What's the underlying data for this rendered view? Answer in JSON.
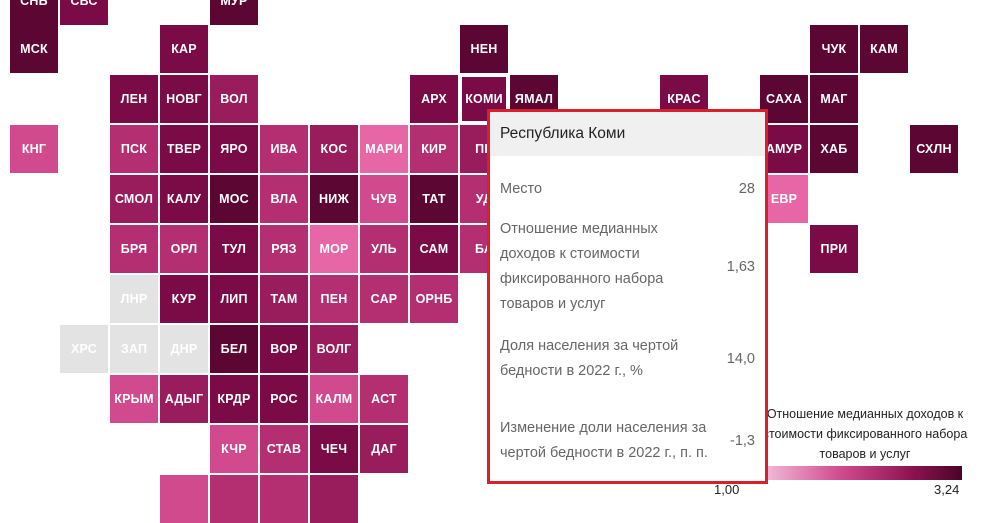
{
  "map": {
    "tiles": [
      {
        "code": "СНБ",
        "shade": "c1"
      },
      {
        "code": "СВС",
        "shade": "c2"
      },
      {
        "code": "МУР",
        "shade": "c1"
      },
      {
        "code": "МСК",
        "shade": "c1"
      },
      {
        "code": "КАР",
        "shade": "c2"
      },
      {
        "code": "НЕН",
        "shade": "c1"
      },
      {
        "code": "ЧУК",
        "shade": "c1"
      },
      {
        "code": "КАМ",
        "shade": "c1"
      },
      {
        "code": "ЛЕН",
        "shade": "c2"
      },
      {
        "code": "НОВГ",
        "shade": "c2"
      },
      {
        "code": "ВОЛ",
        "shade": "c3"
      },
      {
        "code": "АРХ",
        "shade": "c2"
      },
      {
        "code": "КОМИ",
        "shade": "c2",
        "selected": true
      },
      {
        "code": "ЯМАЛ",
        "shade": "c1"
      },
      {
        "code": "КРАС",
        "shade": "c2"
      },
      {
        "code": "САХА",
        "shade": "c1"
      },
      {
        "code": "МАГ",
        "shade": "c1"
      },
      {
        "code": "КНГ",
        "shade": "c5"
      },
      {
        "code": "ПСК",
        "shade": "c4"
      },
      {
        "code": "ТВЕР",
        "shade": "c2"
      },
      {
        "code": "ЯРО",
        "shade": "c2"
      },
      {
        "code": "ИВА",
        "shade": "c4"
      },
      {
        "code": "КОС",
        "shade": "c3"
      },
      {
        "code": "МАРИ",
        "shade": "c6"
      },
      {
        "code": "КИР",
        "shade": "c4"
      },
      {
        "code": "ПЕ",
        "shade": "c3"
      },
      {
        "code": "АМУР",
        "shade": "c2"
      },
      {
        "code": "ХАБ",
        "shade": "c1"
      },
      {
        "code": "СХЛН",
        "shade": "c1"
      },
      {
        "code": "СМОЛ",
        "shade": "c3"
      },
      {
        "code": "КАЛУ",
        "shade": "c2"
      },
      {
        "code": "МОС",
        "shade": "c1"
      },
      {
        "code": "ВЛА",
        "shade": "c4"
      },
      {
        "code": "НИЖ",
        "shade": "c1"
      },
      {
        "code": "ЧУВ",
        "shade": "c5"
      },
      {
        "code": "ТАТ",
        "shade": "c1"
      },
      {
        "code": "УД",
        "shade": "c4"
      },
      {
        "code": "ЕВР",
        "shade": "c6"
      },
      {
        "code": "БРЯ",
        "shade": "c4"
      },
      {
        "code": "ОРЛ",
        "shade": "c4"
      },
      {
        "code": "ТУЛ",
        "shade": "c2"
      },
      {
        "code": "РЯЗ",
        "shade": "c4"
      },
      {
        "code": "МОР",
        "shade": "c6"
      },
      {
        "code": "УЛЬ",
        "shade": "c4"
      },
      {
        "code": "САМ",
        "shade": "c2"
      },
      {
        "code": "БА",
        "shade": "c4"
      },
      {
        "code": "ПРИ",
        "shade": "c2"
      },
      {
        "code": "ЛНР",
        "shade": "cg"
      },
      {
        "code": "КУР",
        "shade": "c2"
      },
      {
        "code": "ЛИП",
        "shade": "c2"
      },
      {
        "code": "ТАМ",
        "shade": "c3"
      },
      {
        "code": "ПЕН",
        "shade": "c4"
      },
      {
        "code": "САР",
        "shade": "c4"
      },
      {
        "code": "ОРНБ",
        "shade": "c4"
      },
      {
        "code": "ХРС",
        "shade": "cg"
      },
      {
        "code": "ЗАП",
        "shade": "cg"
      },
      {
        "code": "ДНР",
        "shade": "cg"
      },
      {
        "code": "БЕЛ",
        "shade": "c1"
      },
      {
        "code": "ВОР",
        "shade": "c2"
      },
      {
        "code": "ВОЛГ",
        "shade": "c3"
      },
      {
        "code": "КРЫМ",
        "shade": "c5"
      },
      {
        "code": "АДЫГ",
        "shade": "c3"
      },
      {
        "code": "КРДР",
        "shade": "c2"
      },
      {
        "code": "РОС",
        "shade": "c2"
      },
      {
        "code": "КАЛМ",
        "shade": "c5"
      },
      {
        "code": "АСТ",
        "shade": "c4"
      },
      {
        "code": "КЧР",
        "shade": "c5"
      },
      {
        "code": "СТАВ",
        "shade": "c4"
      },
      {
        "code": "ЧЕЧ",
        "shade": "c2"
      },
      {
        "code": "ДАГ",
        "shade": "c3"
      },
      {
        "code": "",
        "shade": "c5"
      },
      {
        "code": "",
        "shade": "c4"
      },
      {
        "code": "",
        "shade": "c4"
      },
      {
        "code": "",
        "shade": "c3"
      }
    ]
  },
  "legend": {
    "title": "Отношение медианных доходов к стоимости фиксированного набора товаров и услуг",
    "min_label": "1,00",
    "max_label": "3,24",
    "min_color": "#f4c3dd",
    "max_color": "#4a0428"
  },
  "tooltip": {
    "region": "Республика Коми",
    "rows": [
      {
        "label": "Место",
        "value": "28"
      },
      {
        "label": "Отношение медианных доходов к стоимости фиксированного набора товаров и услуг",
        "value": "1,63"
      },
      {
        "label": "Доля населения за чертой бедности в 2022 г., %",
        "value": "14,0"
      },
      {
        "label": "Изменение доли населения за чертой бедности в 2022 г., п. п.",
        "value": "-1,3"
      }
    ],
    "border_color": "#d8202a"
  }
}
